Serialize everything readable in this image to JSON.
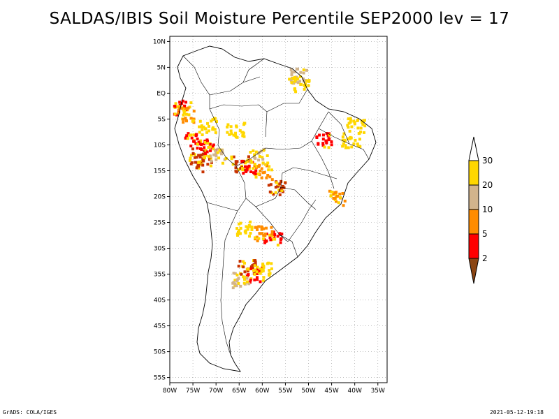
{
  "title": "SALDAS/IBIS Soil Moisture Percentile SEP2000 lev = 17",
  "map": {
    "region": "South America",
    "lon_range": [
      -80,
      -33
    ],
    "lat_range": [
      -56,
      11
    ],
    "lon_ticks": [
      {
        "value": -80,
        "label": "80W"
      },
      {
        "value": -75,
        "label": "75W"
      },
      {
        "value": -70,
        "label": "70W"
      },
      {
        "value": -65,
        "label": "65W"
      },
      {
        "value": -60,
        "label": "60W"
      },
      {
        "value": -55,
        "label": "55W"
      },
      {
        "value": -50,
        "label": "50W"
      },
      {
        "value": -45,
        "label": "45W"
      },
      {
        "value": -40,
        "label": "40W"
      },
      {
        "value": -35,
        "label": "35W"
      }
    ],
    "lat_ticks": [
      {
        "value": 10,
        "label": "10N"
      },
      {
        "value": 5,
        "label": "5N"
      },
      {
        "value": 0,
        "label": "EQ"
      },
      {
        "value": -5,
        "label": "5S"
      },
      {
        "value": -10,
        "label": "10S"
      },
      {
        "value": -15,
        "label": "15S"
      },
      {
        "value": -20,
        "label": "20S"
      },
      {
        "value": -25,
        "label": "25S"
      },
      {
        "value": -30,
        "label": "30S"
      },
      {
        "value": -35,
        "label": "35S"
      },
      {
        "value": -40,
        "label": "40S"
      },
      {
        "value": -45,
        "label": "45S"
      },
      {
        "value": -50,
        "label": "50S"
      },
      {
        "value": -55,
        "label": "55S"
      }
    ],
    "gridlines": true,
    "dry_regions": [
      {
        "lon": -77.5,
        "lat": -2.5,
        "level": 5
      },
      {
        "lon": -76.5,
        "lat": -4,
        "level": 10
      },
      {
        "lon": -74,
        "lat": -12,
        "level": 2
      },
      {
        "lon": -73,
        "lat": -13.5,
        "level": 2
      },
      {
        "lon": -72,
        "lat": -10,
        "level": 5
      },
      {
        "lon": -75,
        "lat": -9,
        "level": 5
      },
      {
        "lon": -70,
        "lat": -12,
        "level": 20
      },
      {
        "lon": -65,
        "lat": -13.5,
        "level": 2
      },
      {
        "lon": -63,
        "lat": -14,
        "level": 5
      },
      {
        "lon": -60,
        "lat": -15,
        "level": 10
      },
      {
        "lon": -57,
        "lat": -18,
        "level": 2
      },
      {
        "lon": -61,
        "lat": -12,
        "level": 20
      },
      {
        "lon": -66,
        "lat": -7,
        "level": 30
      },
      {
        "lon": -72,
        "lat": -6,
        "level": 30
      },
      {
        "lon": -52.5,
        "lat": 3.5,
        "level": 20
      },
      {
        "lon": -52,
        "lat": 2,
        "level": 30
      },
      {
        "lon": -47,
        "lat": -9,
        "level": 5
      },
      {
        "lon": -40,
        "lat": -6,
        "level": 30
      },
      {
        "lon": -41,
        "lat": -9,
        "level": 30
      },
      {
        "lon": -44,
        "lat": -20,
        "level": 10
      },
      {
        "lon": -58,
        "lat": -28,
        "level": 5
      },
      {
        "lon": -60,
        "lat": -27,
        "level": 10
      },
      {
        "lon": -64,
        "lat": -26,
        "level": 30
      },
      {
        "lon": -63.5,
        "lat": -33.5,
        "level": 2
      },
      {
        "lon": -62,
        "lat": -35,
        "level": 5
      },
      {
        "lon": -65,
        "lat": -36,
        "level": 20
      },
      {
        "lon": -60,
        "lat": -34,
        "level": 30
      }
    ]
  },
  "legend": {
    "levels": [
      {
        "label": "30",
        "color": "#ffd700"
      },
      {
        "label": "20",
        "color": "#d2b48c"
      },
      {
        "label": "10",
        "color": "#ff8c00"
      },
      {
        "label": "5",
        "color": "#ff0000"
      },
      {
        "label": "2",
        "color": "#8b4513"
      }
    ],
    "top_color": "#ffffff",
    "bins": [
      {
        "color": "#ffd700"
      },
      {
        "color": "#d2b48c"
      },
      {
        "color": "#ff8c00"
      },
      {
        "color": "#ff0000"
      }
    ],
    "bottom_color": "#8b4513"
  },
  "footer": {
    "left": "GrADS: COLA/IGES",
    "right": "2021-05-12-19:18"
  }
}
